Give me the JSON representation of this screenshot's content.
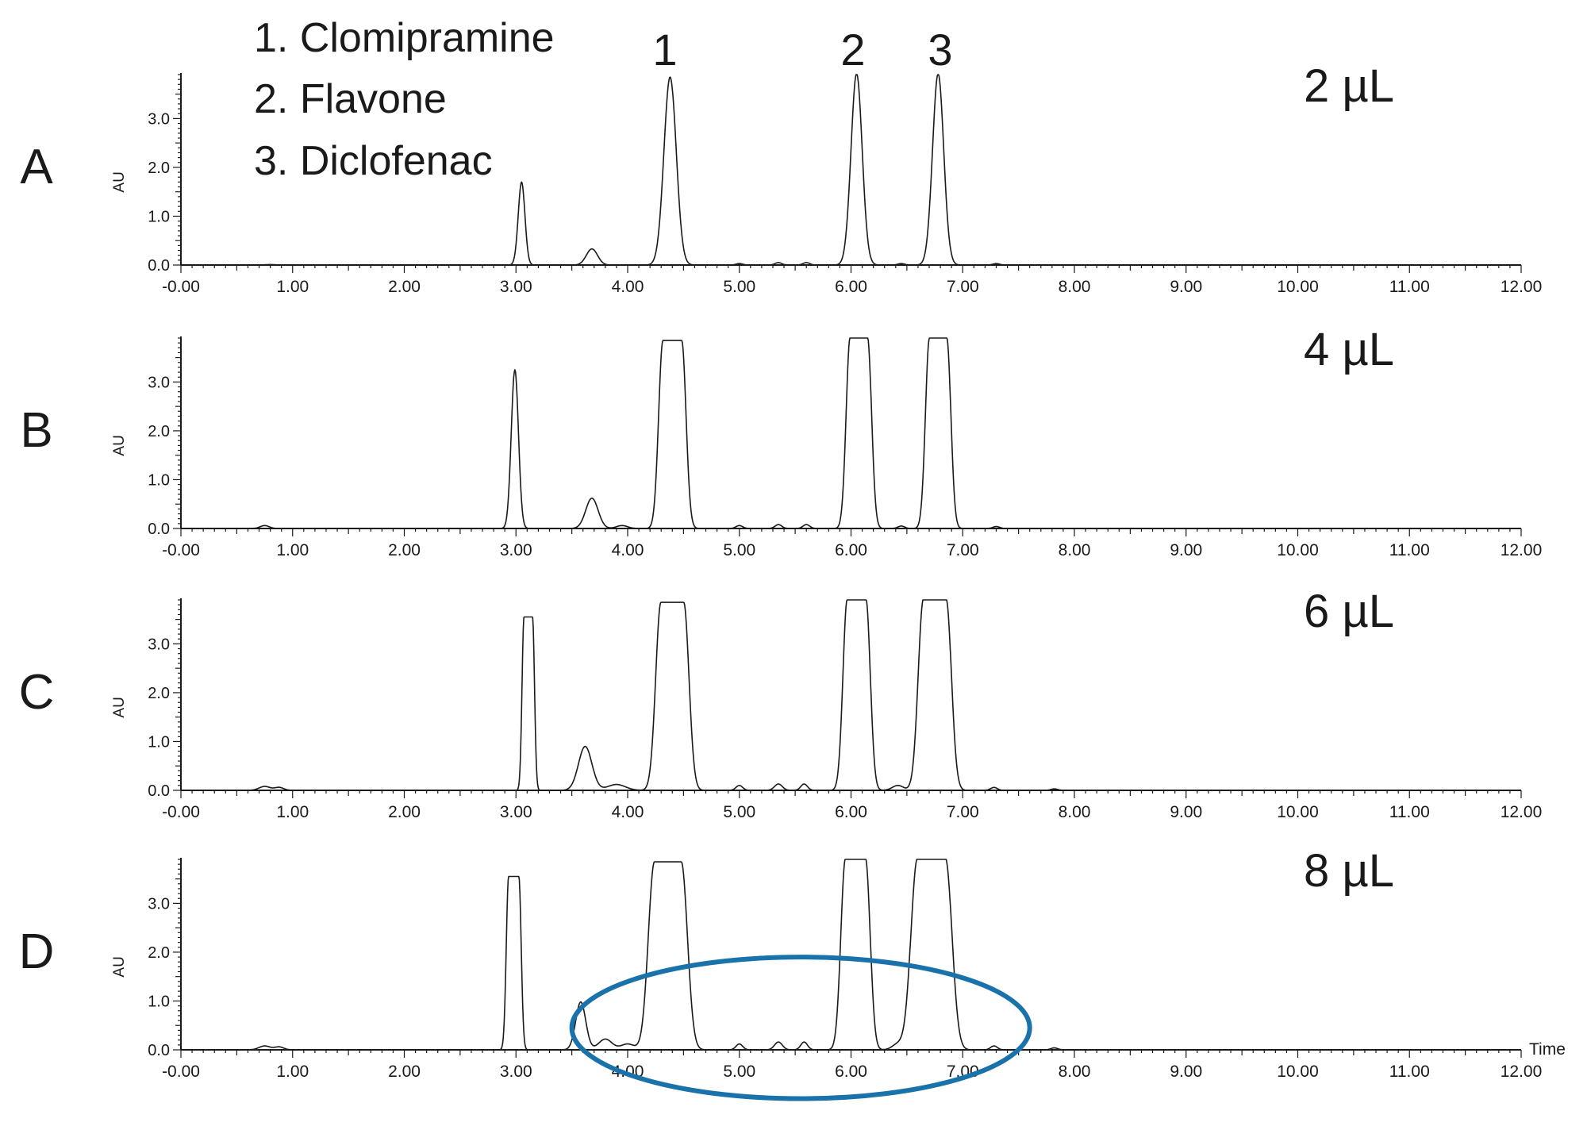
{
  "legend": {
    "items": [
      "1. Clomipramine",
      "2. Flavone",
      "3. Diclofenac"
    ]
  },
  "peak_labels": [
    "1",
    "2",
    "3"
  ],
  "colors": {
    "trace": "#1a1a1a",
    "axis": "#1a1a1a",
    "highlight_ellipse": "#1a72ab"
  },
  "chart_data": [
    {
      "type": "line",
      "panel_label": "A",
      "volume_label": "2 µL",
      "ylabel": "AU",
      "xlabel": "",
      "xlim": [
        0,
        12
      ],
      "ylim": [
        0,
        3.9
      ],
      "x_ticks": [
        "-0.00",
        "1.00",
        "2.00",
        "3.00",
        "4.00",
        "5.00",
        "6.00",
        "7.00",
        "8.00",
        "9.00",
        "10.00",
        "11.00",
        "12.00"
      ],
      "y_ticks": [
        "0.0",
        "1.0",
        "2.0",
        "3.0"
      ],
      "peaks": [
        {
          "t": 0.8,
          "h": 0.01,
          "w": 0.04
        },
        {
          "t": 3.05,
          "h": 1.7,
          "w": 0.03
        },
        {
          "t": 3.68,
          "h": 0.33,
          "w": 0.05
        },
        {
          "t": 4.38,
          "h": 3.85,
          "w": 0.055
        },
        {
          "t": 5.0,
          "h": 0.03,
          "w": 0.03
        },
        {
          "t": 5.35,
          "h": 0.05,
          "w": 0.03
        },
        {
          "t": 5.6,
          "h": 0.05,
          "w": 0.03
        },
        {
          "t": 6.05,
          "h": 3.92,
          "w": 0.05
        },
        {
          "t": 6.45,
          "h": 0.03,
          "w": 0.03
        },
        {
          "t": 6.78,
          "h": 3.92,
          "w": 0.05
        },
        {
          "t": 7.3,
          "h": 0.03,
          "w": 0.03
        }
      ],
      "flat_top": null
    },
    {
      "type": "line",
      "panel_label": "B",
      "volume_label": "4 µL",
      "ylabel": "AU",
      "xlabel": "",
      "xlim": [
        0,
        12
      ],
      "ylim": [
        0,
        3.9
      ],
      "x_ticks": [
        "-0.00",
        "1.00",
        "2.00",
        "3.00",
        "4.00",
        "5.00",
        "6.00",
        "7.00",
        "8.00",
        "9.00",
        "10.00",
        "11.00",
        "12.00"
      ],
      "y_ticks": [
        "0.0",
        "1.0",
        "2.0",
        "3.0"
      ],
      "peaks": [
        {
          "t": 0.75,
          "h": 0.06,
          "w": 0.04
        },
        {
          "t": 2.99,
          "h": 3.25,
          "w": 0.032
        },
        {
          "t": 3.68,
          "h": 0.62,
          "w": 0.055
        },
        {
          "t": 3.95,
          "h": 0.06,
          "w": 0.05
        },
        {
          "t": 4.4,
          "h": 3.85,
          "w": 0.07
        },
        {
          "t": 5.0,
          "h": 0.06,
          "w": 0.03
        },
        {
          "t": 5.35,
          "h": 0.08,
          "w": 0.03
        },
        {
          "t": 5.6,
          "h": 0.08,
          "w": 0.03
        },
        {
          "t": 6.07,
          "h": 3.92,
          "w": 0.065
        },
        {
          "t": 6.45,
          "h": 0.05,
          "w": 0.03
        },
        {
          "t": 6.78,
          "h": 3.9,
          "w": 0.065
        },
        {
          "t": 7.3,
          "h": 0.04,
          "w": 0.03
        }
      ],
      "flat_top": 3.88
    },
    {
      "type": "line",
      "panel_label": "C",
      "volume_label": "6 µL",
      "ylabel": "AU",
      "xlabel": "",
      "xlim": [
        0,
        12
      ],
      "ylim": [
        0,
        3.9
      ],
      "x_ticks": [
        "-0.00",
        "1.00",
        "2.00",
        "3.00",
        "4.00",
        "5.00",
        "6.00",
        "7.00",
        "8.00",
        "9.00",
        "10.00",
        "11.00",
        "12.00"
      ],
      "y_ticks": [
        "0.0",
        "1.0",
        "2.0",
        "3.0"
      ],
      "peaks": [
        {
          "t": 0.75,
          "h": 0.08,
          "w": 0.05
        },
        {
          "t": 0.88,
          "h": 0.06,
          "w": 0.04
        },
        {
          "t": 3.11,
          "h": 3.55,
          "w": 0.032
        },
        {
          "t": 3.62,
          "h": 0.9,
          "w": 0.06
        },
        {
          "t": 3.9,
          "h": 0.12,
          "w": 0.08
        },
        {
          "t": 4.4,
          "h": 3.85,
          "w": 0.085
        },
        {
          "t": 5.0,
          "h": 0.1,
          "w": 0.03
        },
        {
          "t": 5.35,
          "h": 0.13,
          "w": 0.035
        },
        {
          "t": 5.58,
          "h": 0.13,
          "w": 0.03
        },
        {
          "t": 6.05,
          "h": 3.92,
          "w": 0.07
        },
        {
          "t": 6.42,
          "h": 0.1,
          "w": 0.05
        },
        {
          "t": 6.75,
          "h": 3.92,
          "w": 0.085
        },
        {
          "t": 7.28,
          "h": 0.06,
          "w": 0.03
        },
        {
          "t": 7.82,
          "h": 0.03,
          "w": 0.03
        }
      ],
      "flat_top": 3.88
    },
    {
      "type": "line",
      "panel_label": "D",
      "volume_label": "8 µL",
      "ylabel": "AU",
      "xlabel": "Time",
      "xlim": [
        0,
        12
      ],
      "ylim": [
        0,
        3.9
      ],
      "x_ticks": [
        "-0.00",
        "1.00",
        "2.00",
        "3.00",
        "4.00",
        "5.00",
        "6.00",
        "7.00",
        "8.00",
        "9.00",
        "10.00",
        "11.00",
        "12.00"
      ],
      "y_ticks": [
        "0.0",
        "1.0",
        "2.0",
        "3.0"
      ],
      "peaks": [
        {
          "t": 0.75,
          "h": 0.08,
          "w": 0.05
        },
        {
          "t": 0.88,
          "h": 0.06,
          "w": 0.04
        },
        {
          "t": 2.98,
          "h": 3.55,
          "w": 0.038
        },
        {
          "t": 3.58,
          "h": 0.98,
          "w": 0.045
        },
        {
          "t": 3.8,
          "h": 0.22,
          "w": 0.06
        },
        {
          "t": 4.0,
          "h": 0.12,
          "w": 0.06
        },
        {
          "t": 4.36,
          "h": 3.85,
          "w": 0.1
        },
        {
          "t": 5.0,
          "h": 0.12,
          "w": 0.03
        },
        {
          "t": 5.35,
          "h": 0.16,
          "w": 0.035
        },
        {
          "t": 5.58,
          "h": 0.16,
          "w": 0.03
        },
        {
          "t": 6.04,
          "h": 3.92,
          "w": 0.075
        },
        {
          "t": 6.42,
          "h": 0.12,
          "w": 0.05
        },
        {
          "t": 6.72,
          "h": 3.92,
          "w": 0.105
        },
        {
          "t": 7.28,
          "h": 0.08,
          "w": 0.03
        },
        {
          "t": 7.82,
          "h": 0.04,
          "w": 0.03
        }
      ],
      "flat_top": 3.88,
      "annotation": {
        "shape": "ellipse",
        "x_range": [
          3.5,
          7.6
        ],
        "y_range": [
          -1.0,
          1.9
        ]
      }
    }
  ]
}
